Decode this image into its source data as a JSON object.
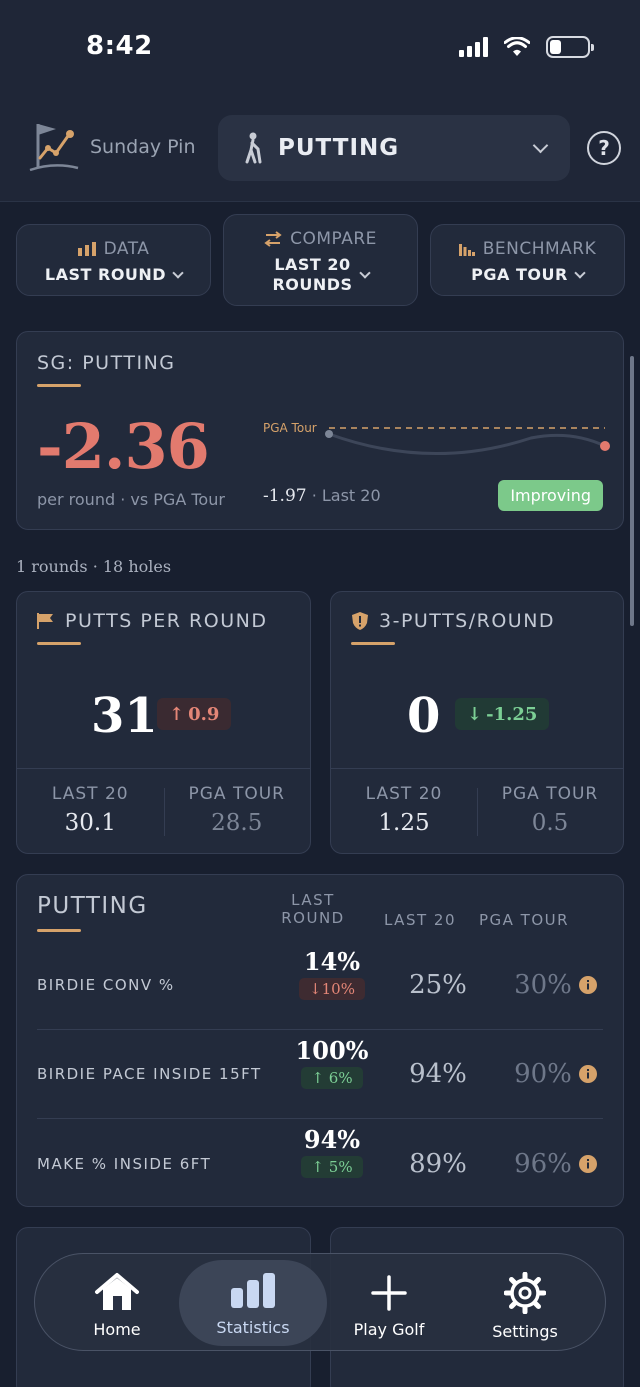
{
  "status_bar": {
    "time": "8:42"
  },
  "header": {
    "logo_text": "Sunday Pin",
    "category": "PUTTING",
    "help_icon": "question-circle-icon"
  },
  "filters": [
    {
      "title": "DATA",
      "value": "LAST ROUND",
      "icon": "bar-chart-icon"
    },
    {
      "title": "COMPARE",
      "value_line1": "LAST 20",
      "value_line2": "ROUNDS",
      "icon": "swap-arrows-icon"
    },
    {
      "title": "BENCHMARK",
      "value": "PGA TOUR",
      "icon": "benchmark-bars-icon"
    }
  ],
  "sg_card": {
    "title": "SG: PUTTING",
    "value": "-2.36",
    "subtitle": "per round · vs PGA Tour",
    "benchmark_label": "PGA Tour",
    "last20_value": "-1.97",
    "last20_label": "· Last 20",
    "badge": "Improving"
  },
  "rounds_info": "1 rounds · 18 holes",
  "stat_cards": [
    {
      "title": "PUTTS PER ROUND",
      "icon": "flag-icon",
      "value": "31",
      "delta": "0.9",
      "delta_dir": "up",
      "col1_label": "LAST 20",
      "col1_value": "30.1",
      "col2_label": "PGA TOUR",
      "col2_value": "28.5"
    },
    {
      "title": "3-PUTTS/ROUND",
      "icon": "shield-alert-icon",
      "value": "0",
      "delta": "-1.25",
      "delta_dir": "down",
      "col1_label": "LAST 20",
      "col1_value": "1.25",
      "col2_label": "PGA TOUR",
      "col2_value": "0.5"
    }
  ],
  "putting_table": {
    "title": "PUTTING",
    "headers": {
      "last_round_1": "LAST",
      "last_round_2": "ROUND",
      "last20": "LAST 20",
      "pga": "PGA TOUR"
    },
    "rows": [
      {
        "label": "BIRDIE CONV %",
        "last_round": "14%",
        "change": "10%",
        "change_dir": "down",
        "last20": "25%",
        "pga": "30%"
      },
      {
        "label": "BIRDIE PACE INSIDE 15FT",
        "last_round": "100%",
        "change": "6%",
        "change_dir": "up",
        "last20": "94%",
        "pga": "90%"
      },
      {
        "label": "MAKE % INSIDE 6FT",
        "last_round": "94%",
        "change": "5%",
        "change_dir": "up",
        "last20": "89%",
        "pga": "96%"
      }
    ]
  },
  "tabbar": [
    {
      "label": "Home",
      "icon": "home-icon"
    },
    {
      "label": "Statistics",
      "icon": "statistics-icon",
      "active": true
    },
    {
      "label": "Play Golf",
      "icon": "plus-icon"
    },
    {
      "label": "Settings",
      "icon": "gear-icon"
    }
  ],
  "colors": {
    "accent": "#d6a26a",
    "negative": "#e27a6e",
    "positive": "#7cc98a",
    "background": "#181f2f"
  }
}
